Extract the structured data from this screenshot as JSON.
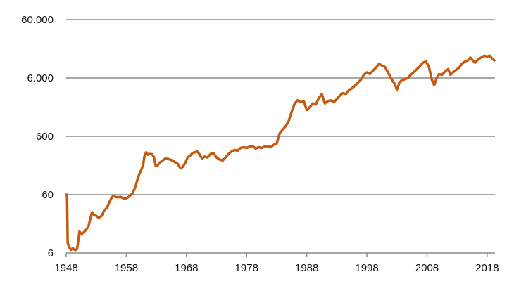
{
  "chart_data": {
    "type": "line",
    "title": "",
    "xlabel": "",
    "ylabel": "",
    "y_scale": "log",
    "ylim": [
      6,
      60000
    ],
    "xlim": [
      1948,
      2019.3
    ],
    "grid": true,
    "legend": "none",
    "y_ticks": [
      {
        "value": 6,
        "label": "6"
      },
      {
        "value": 60,
        "label": "60"
      },
      {
        "value": 600,
        "label": "600"
      },
      {
        "value": 6000,
        "label": "6.000"
      },
      {
        "value": 60000,
        "label": "60.000"
      }
    ],
    "x_ticks": [
      {
        "value": 1948,
        "label": "1948"
      },
      {
        "value": 1958,
        "label": "1958"
      },
      {
        "value": 1968,
        "label": "1968"
      },
      {
        "value": 1978,
        "label": "1978"
      },
      {
        "value": 1988,
        "label": "1988"
      },
      {
        "value": 1998,
        "label": "1998"
      },
      {
        "value": 2008,
        "label": "2008"
      },
      {
        "value": 2018,
        "label": "2018"
      }
    ],
    "series": [
      {
        "color": "#c55a11",
        "points": [
          [
            1948.0,
            60
          ],
          [
            1948.1,
            60
          ],
          [
            1948.15,
            50
          ],
          [
            1948.25,
            9
          ],
          [
            1948.5,
            7.5
          ],
          [
            1948.8,
            6.8
          ],
          [
            1949.1,
            7.2
          ],
          [
            1949.5,
            6.7
          ],
          [
            1949.8,
            7.0
          ],
          [
            1950.0,
            9.5
          ],
          [
            1950.2,
            14
          ],
          [
            1950.5,
            12.5
          ],
          [
            1950.9,
            13.5
          ],
          [
            1951.3,
            15
          ],
          [
            1951.7,
            17
          ],
          [
            1952.0,
            23
          ],
          [
            1952.3,
            30
          ],
          [
            1952.6,
            27
          ],
          [
            1953.0,
            26
          ],
          [
            1953.4,
            24
          ],
          [
            1953.9,
            26
          ],
          [
            1954.3,
            32
          ],
          [
            1954.8,
            36
          ],
          [
            1955.2,
            45
          ],
          [
            1955.5,
            52
          ],
          [
            1955.8,
            57
          ],
          [
            1956.2,
            55
          ],
          [
            1956.6,
            54
          ],
          [
            1957.0,
            55
          ],
          [
            1957.5,
            52
          ],
          [
            1958.0,
            52
          ],
          [
            1958.5,
            56
          ],
          [
            1959.0,
            63
          ],
          [
            1959.5,
            80
          ],
          [
            1959.8,
            105
          ],
          [
            1960.2,
            140
          ],
          [
            1960.5,
            160
          ],
          [
            1960.8,
            195
          ],
          [
            1961.0,
            270
          ],
          [
            1961.3,
            320
          ],
          [
            1961.6,
            290
          ],
          [
            1962.0,
            300
          ],
          [
            1962.3,
            295
          ],
          [
            1962.6,
            260
          ],
          [
            1962.9,
            185
          ],
          [
            1963.2,
            190
          ],
          [
            1963.5,
            210
          ],
          [
            1964.0,
            230
          ],
          [
            1964.5,
            250
          ],
          [
            1965.0,
            245
          ],
          [
            1965.5,
            235
          ],
          [
            1966.0,
            220
          ],
          [
            1966.5,
            205
          ],
          [
            1967.0,
            170
          ],
          [
            1967.4,
            180
          ],
          [
            1967.8,
            210
          ],
          [
            1968.2,
            260
          ],
          [
            1968.6,
            280
          ],
          [
            1969.0,
            310
          ],
          [
            1969.4,
            320
          ],
          [
            1969.8,
            330
          ],
          [
            1970.2,
            290
          ],
          [
            1970.6,
            250
          ],
          [
            1971.0,
            270
          ],
          [
            1971.5,
            260
          ],
          [
            1972.0,
            300
          ],
          [
            1972.5,
            310
          ],
          [
            1973.0,
            260
          ],
          [
            1973.5,
            240
          ],
          [
            1974.0,
            230
          ],
          [
            1974.5,
            260
          ],
          [
            1975.0,
            300
          ],
          [
            1975.5,
            330
          ],
          [
            1976.0,
            350
          ],
          [
            1976.5,
            340
          ],
          [
            1977.0,
            380
          ],
          [
            1977.5,
            390
          ],
          [
            1978.0,
            380
          ],
          [
            1978.5,
            400
          ],
          [
            1979.0,
            410
          ],
          [
            1979.5,
            370
          ],
          [
            1980.0,
            390
          ],
          [
            1980.5,
            380
          ],
          [
            1981.0,
            400
          ],
          [
            1981.5,
            410
          ],
          [
            1982.0,
            390
          ],
          [
            1982.5,
            430
          ],
          [
            1983.0,
            450
          ],
          [
            1983.5,
            680
          ],
          [
            1984.0,
            780
          ],
          [
            1984.5,
            900
          ],
          [
            1985.0,
            1100
          ],
          [
            1985.5,
            1600
          ],
          [
            1986.0,
            2200
          ],
          [
            1986.5,
            2500
          ],
          [
            1987.0,
            2300
          ],
          [
            1987.5,
            2400
          ],
          [
            1988.0,
            1700
          ],
          [
            1988.5,
            1900
          ],
          [
            1989.0,
            2200
          ],
          [
            1989.5,
            2100
          ],
          [
            1990.0,
            2700
          ],
          [
            1990.5,
            3200
          ],
          [
            1991.0,
            2200
          ],
          [
            1991.5,
            2400
          ],
          [
            1992.0,
            2500
          ],
          [
            1992.5,
            2300
          ],
          [
            1993.0,
            2600
          ],
          [
            1993.5,
            3000
          ],
          [
            1994.0,
            3300
          ],
          [
            1994.5,
            3200
          ],
          [
            1995.0,
            3700
          ],
          [
            1995.5,
            4000
          ],
          [
            1996.0,
            4400
          ],
          [
            1996.5,
            5000
          ],
          [
            1997.0,
            5600
          ],
          [
            1997.5,
            6800
          ],
          [
            1998.0,
            7500
          ],
          [
            1998.5,
            7000
          ],
          [
            1999.0,
            8000
          ],
          [
            1999.5,
            9000
          ],
          [
            2000.0,
            10500
          ],
          [
            2000.5,
            9800
          ],
          [
            2001.0,
            9300
          ],
          [
            2001.5,
            7500
          ],
          [
            2002.0,
            6000
          ],
          [
            2002.3,
            5300
          ],
          [
            2002.6,
            4800
          ],
          [
            2003.0,
            3800
          ],
          [
            2003.4,
            5000
          ],
          [
            2003.8,
            5500
          ],
          [
            2004.3,
            5700
          ],
          [
            2004.8,
            6000
          ],
          [
            2005.3,
            6800
          ],
          [
            2005.8,
            7600
          ],
          [
            2006.3,
            8500
          ],
          [
            2006.8,
            9500
          ],
          [
            2007.3,
            11000
          ],
          [
            2007.8,
            11500
          ],
          [
            2008.3,
            9500
          ],
          [
            2008.8,
            5600
          ],
          [
            2009.2,
            4500
          ],
          [
            2009.6,
            6000
          ],
          [
            2010.0,
            7000
          ],
          [
            2010.5,
            6800
          ],
          [
            2011.0,
            7800
          ],
          [
            2011.5,
            8500
          ],
          [
            2011.9,
            6800
          ],
          [
            2012.3,
            7500
          ],
          [
            2012.8,
            8200
          ],
          [
            2013.3,
            9000
          ],
          [
            2013.8,
            10500
          ],
          [
            2014.3,
            11500
          ],
          [
            2014.8,
            12000
          ],
          [
            2015.2,
            13500
          ],
          [
            2015.6,
            12000
          ],
          [
            2016.0,
            11000
          ],
          [
            2016.5,
            12500
          ],
          [
            2017.0,
            13500
          ],
          [
            2017.5,
            14500
          ],
          [
            2018.0,
            14000
          ],
          [
            2018.4,
            14500
          ],
          [
            2018.8,
            13000
          ],
          [
            2019.2,
            12000
          ]
        ]
      }
    ]
  }
}
